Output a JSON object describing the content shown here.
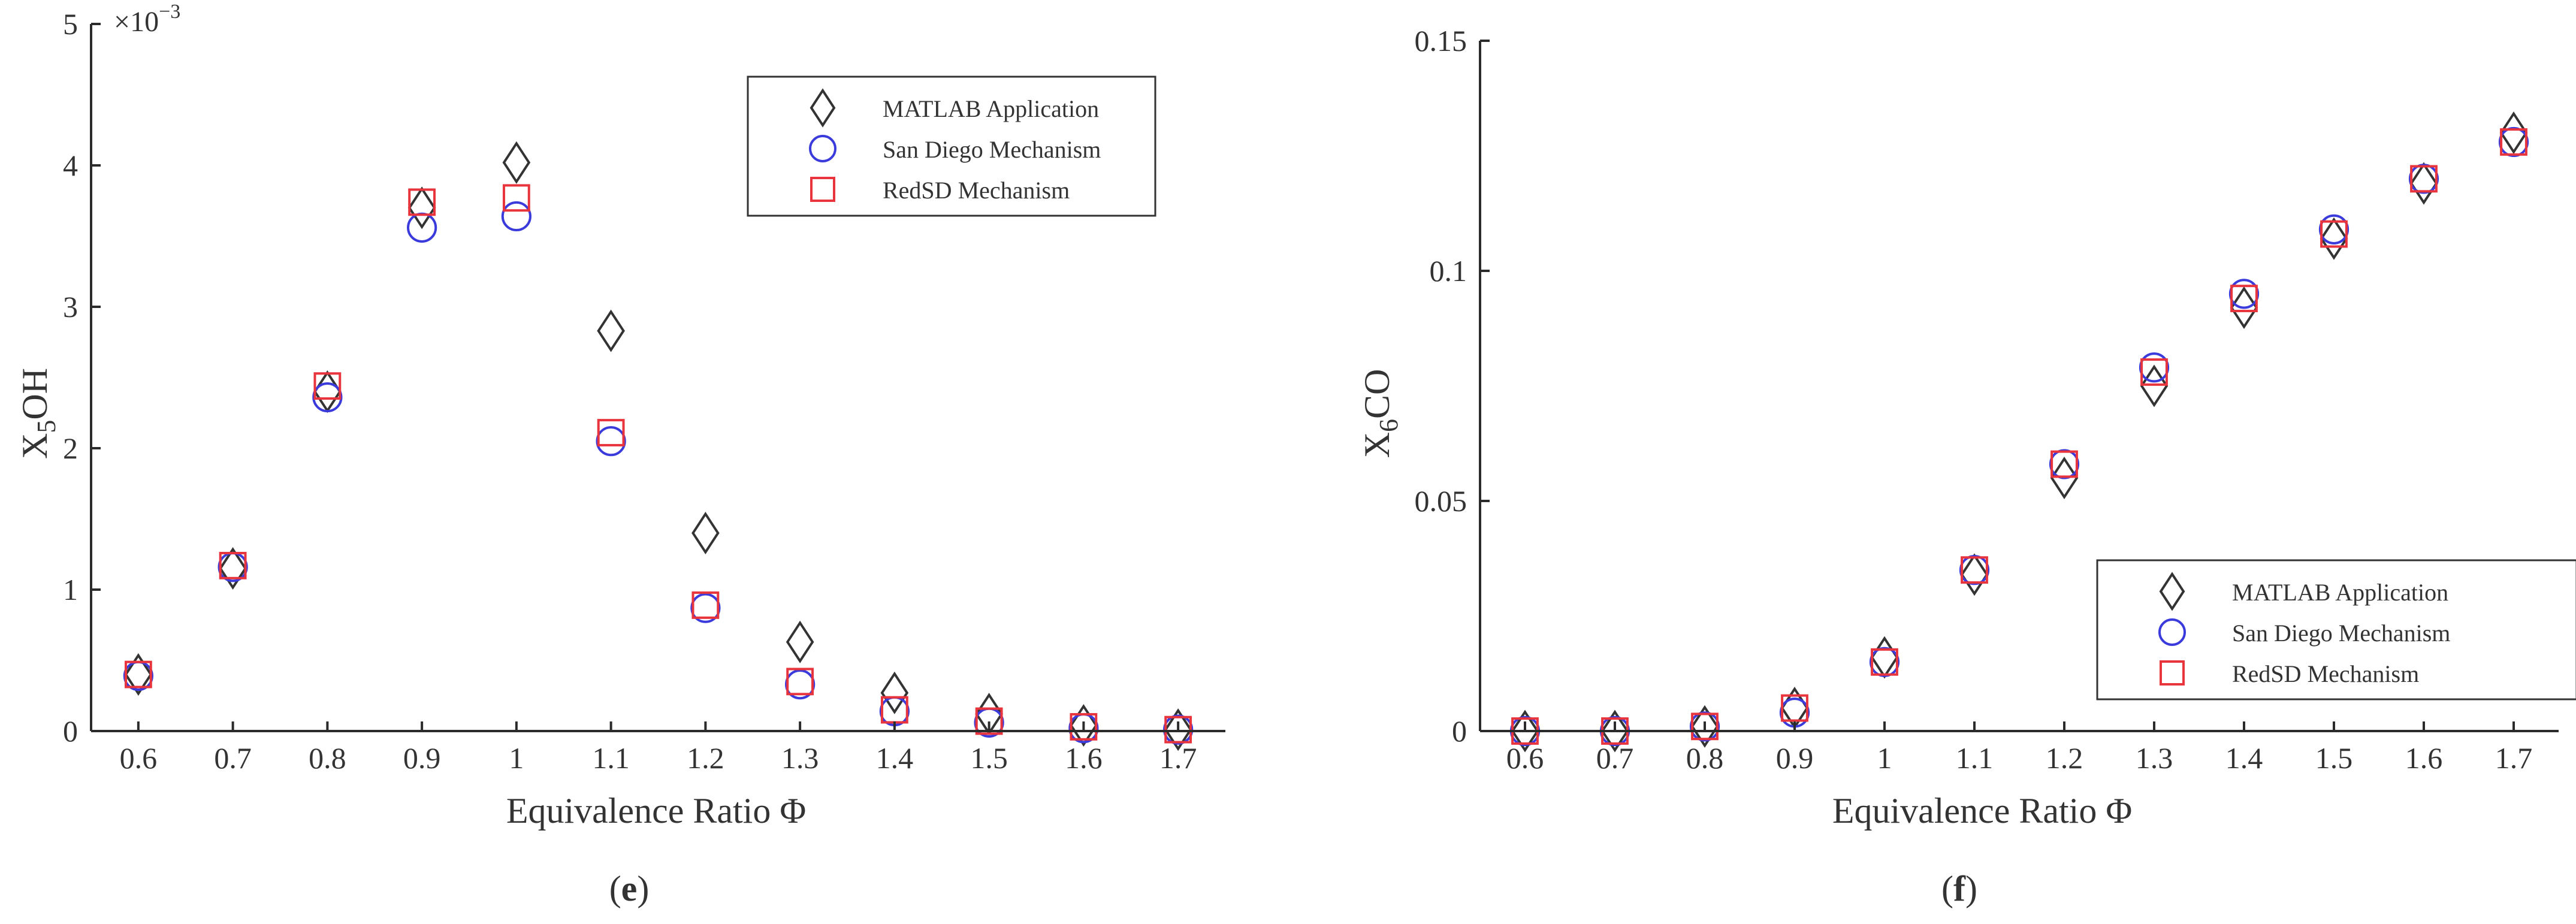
{
  "chart_data": [
    {
      "type": "scatter",
      "panel_label": "e",
      "xlabel": "Equivalence Ratio Φ",
      "ylabel_main": "X",
      "ylabel_sub": "5",
      "ylabel_rest": "OH",
      "scale_mantissa": "×10",
      "scale_exp": "−3",
      "x_ticks": [
        "0.6",
        "0.7",
        "0.8",
        "0.9",
        "1",
        "1.1",
        "1.2",
        "1.3",
        "1.4",
        "1.5",
        "1.6",
        "1.7"
      ],
      "y_ticks": [
        "0",
        "1",
        "2",
        "3",
        "4",
        "5"
      ],
      "xlim": [
        0.55,
        1.75
      ],
      "ylim": [
        0,
        5
      ],
      "legend_position": "top-right",
      "x": [
        0.6,
        0.7,
        0.8,
        0.9,
        1.0,
        1.1,
        1.2,
        1.3,
        1.4,
        1.5,
        1.6,
        1.7
      ],
      "series": [
        {
          "name": "MATLAB Application",
          "marker": "diamond",
          "color": "#333333",
          "values": [
            0.4,
            1.15,
            2.4,
            3.7,
            4.02,
            2.83,
            1.4,
            0.63,
            0.27,
            0.12,
            0.04,
            0.01
          ]
        },
        {
          "name": "San Diego Mechanism",
          "marker": "circle",
          "color": "#3b3bdc",
          "values": [
            0.39,
            1.16,
            2.36,
            3.56,
            3.64,
            2.05,
            0.87,
            0.33,
            0.14,
            0.06,
            0.02,
            0.01
          ]
        },
        {
          "name": "RedSD Mechanism",
          "marker": "square",
          "color": "#e8343c",
          "values": [
            0.4,
            1.17,
            2.44,
            3.74,
            3.77,
            2.11,
            0.89,
            0.35,
            0.15,
            0.07,
            0.03,
            0.01
          ]
        }
      ]
    },
    {
      "type": "scatter",
      "panel_label": "f",
      "xlabel": "Equivalence Ratio Φ",
      "ylabel_main": "X",
      "ylabel_sub": "6",
      "ylabel_rest": "CO",
      "x_ticks": [
        "0.6",
        "0.7",
        "0.8",
        "0.9",
        "1",
        "1.1",
        "1.2",
        "1.3",
        "1.4",
        "1.5",
        "1.6",
        "1.7"
      ],
      "y_ticks": [
        "0",
        "0.05",
        "0.1",
        "0.15"
      ],
      "xlim": [
        0.55,
        1.75
      ],
      "ylim": [
        0,
        0.15
      ],
      "legend_position": "bottom-right",
      "x": [
        0.6,
        0.7,
        0.8,
        0.9,
        1.0,
        1.1,
        1.2,
        1.3,
        1.4,
        1.5,
        1.6,
        1.7
      ],
      "series": [
        {
          "name": "MATLAB Application",
          "marker": "diamond",
          "color": "#333333",
          "values": [
            0.0,
            0.0,
            0.001,
            0.005,
            0.016,
            0.034,
            0.055,
            0.075,
            0.092,
            0.107,
            0.119,
            0.13
          ]
        },
        {
          "name": "San Diego Mechanism",
          "marker": "circle",
          "color": "#3b3bdc",
          "values": [
            0.0,
            0.0,
            0.001,
            0.004,
            0.015,
            0.035,
            0.058,
            0.079,
            0.095,
            0.109,
            0.12,
            0.128
          ]
        },
        {
          "name": "RedSD Mechanism",
          "marker": "square",
          "color": "#e8343c",
          "values": [
            0.0,
            0.0,
            0.001,
            0.005,
            0.015,
            0.035,
            0.058,
            0.078,
            0.094,
            0.108,
            0.12,
            0.128
          ]
        }
      ]
    }
  ],
  "captions": {
    "e": "e",
    "f": "f"
  }
}
